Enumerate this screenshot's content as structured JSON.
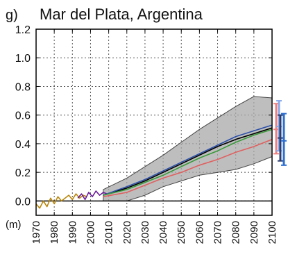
{
  "chart_data": {
    "type": "line",
    "panel_label": "g)",
    "title": "Mar del Plata, Argentina",
    "ylabel": "(m)",
    "xlabel": "",
    "xlim": [
      1970,
      2100
    ],
    "ylim": [
      -0.1,
      1.2
    ],
    "yticks": [
      0.0,
      0.2,
      0.4,
      0.6,
      0.8,
      1.0,
      1.2
    ],
    "ytick_labels": [
      "0.0",
      "0.2",
      "0.4",
      "0.6",
      "0.8",
      "1.0",
      "1.2"
    ],
    "xticks": [
      1970,
      1980,
      1990,
      2000,
      2010,
      2020,
      2030,
      2040,
      2050,
      2060,
      2070,
      2080,
      2090,
      2100
    ],
    "xtick_labels": [
      "1970",
      "1980",
      "1990",
      "2000",
      "2010",
      "2020",
      "2030",
      "2040",
      "2050",
      "2060",
      "2070",
      "2080",
      "2090",
      "2100"
    ],
    "grid": true,
    "zero_line": 0.0,
    "uncertainty_band": {
      "x": [
        2007,
        2020,
        2030,
        2040,
        2050,
        2060,
        2070,
        2080,
        2090,
        2100
      ],
      "upper": [
        0.08,
        0.16,
        0.24,
        0.32,
        0.41,
        0.5,
        0.58,
        0.66,
        0.73,
        0.72
      ],
      "lower": [
        0.0,
        0.0,
        0.04,
        0.1,
        0.14,
        0.18,
        0.2,
        0.22,
        0.26,
        0.31
      ]
    },
    "series": [
      {
        "color": "#b8860b",
        "x": [
          1970,
          1972,
          1974,
          1976,
          1978,
          1980,
          1982,
          1984,
          1986,
          1988,
          1990,
          1992,
          1994,
          1996,
          1998
        ],
        "values": [
          -0.02,
          -0.05,
          0.0,
          -0.04,
          0.02,
          -0.02,
          0.03,
          0.0,
          0.02,
          0.04,
          0.01,
          0.05,
          0.02,
          0.04,
          0.03
        ]
      },
      {
        "color": "#6a1b9a",
        "x": [
          1993,
          1995,
          1997,
          1999,
          2001,
          2003,
          2005,
          2007,
          2009
        ],
        "values": [
          0.02,
          0.05,
          0.01,
          0.06,
          0.03,
          0.07,
          0.04,
          0.06,
          0.05
        ]
      },
      {
        "color": "#000000",
        "x": [
          2007,
          2020,
          2030,
          2040,
          2050,
          2060,
          2070,
          2080,
          2090,
          2100
        ],
        "values": [
          0.04,
          0.09,
          0.14,
          0.2,
          0.26,
          0.32,
          0.38,
          0.43,
          0.47,
          0.51
        ]
      },
      {
        "color": "#2c4fa8",
        "x": [
          2007,
          2020,
          2030,
          2040,
          2050,
          2060,
          2070,
          2080,
          2090,
          2100
        ],
        "values": [
          0.04,
          0.1,
          0.15,
          0.21,
          0.27,
          0.33,
          0.39,
          0.45,
          0.49,
          0.53
        ]
      },
      {
        "color": "#3a9a3a",
        "x": [
          2007,
          2020,
          2030,
          2040,
          2050,
          2060,
          2070,
          2080,
          2090,
          2100
        ],
        "values": [
          0.04,
          0.08,
          0.13,
          0.18,
          0.24,
          0.3,
          0.35,
          0.41,
          0.46,
          0.5
        ]
      },
      {
        "color": "#e06060",
        "x": [
          2007,
          2020,
          2030,
          2040,
          2050,
          2060,
          2070,
          2080,
          2090,
          2100
        ],
        "values": [
          0.03,
          0.06,
          0.11,
          0.16,
          0.2,
          0.25,
          0.29,
          0.34,
          0.38,
          0.43
        ]
      }
    ],
    "range_bars": [
      {
        "color": "#f08080",
        "min": 0.33,
        "max": 0.68,
        "median": 0.5
      },
      {
        "color": "#87a8e8",
        "min": 0.35,
        "max": 0.7,
        "median": 0.52
      },
      {
        "color": "#2c3e70",
        "min": 0.28,
        "max": 0.6,
        "median": 0.44
      },
      {
        "color": "#2c6fd0",
        "min": 0.25,
        "max": 0.61,
        "median": 0.42
      }
    ]
  }
}
